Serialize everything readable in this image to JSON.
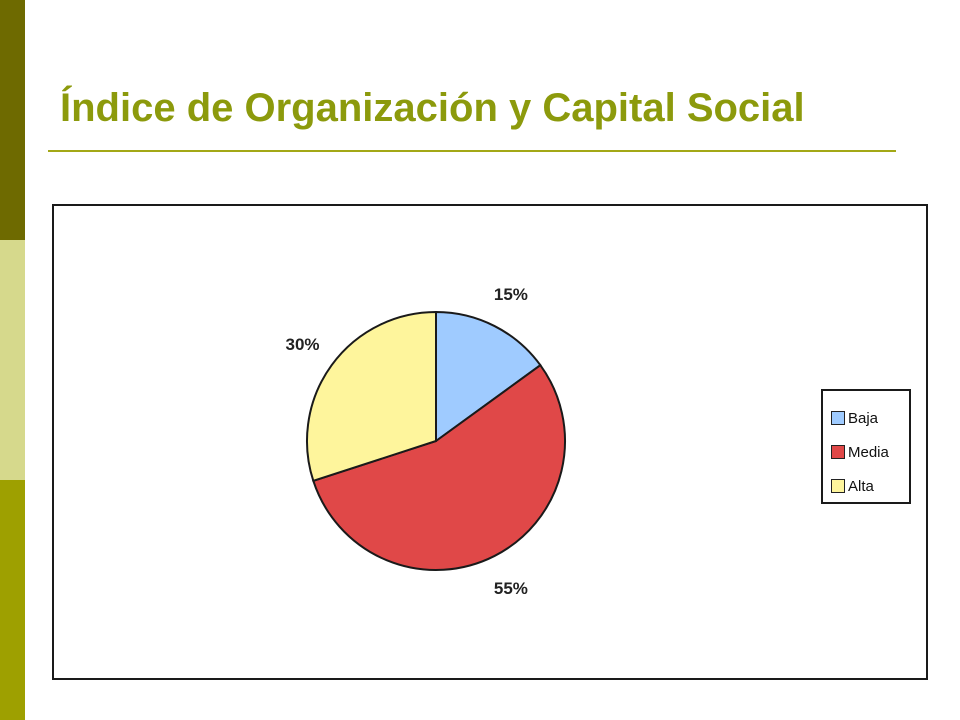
{
  "slide": {
    "title": "Índice de Organización y Capital Social",
    "title_color": "#8c9a0c",
    "rule_color": "#a3a816",
    "side_colors": [
      "#6e6a00",
      "#d6d98c",
      "#9ea000"
    ]
  },
  "chart_data": {
    "type": "pie",
    "title": "",
    "categories": [
      "Baja",
      "Media",
      "Alta"
    ],
    "values": [
      15,
      55,
      30
    ],
    "labels": [
      "15%",
      "55%",
      "30%"
    ],
    "colors": [
      "#9fcbff",
      "#e04848",
      "#fef59c"
    ],
    "legend": "right",
    "start_angle": "top",
    "direction": "clockwise"
  }
}
